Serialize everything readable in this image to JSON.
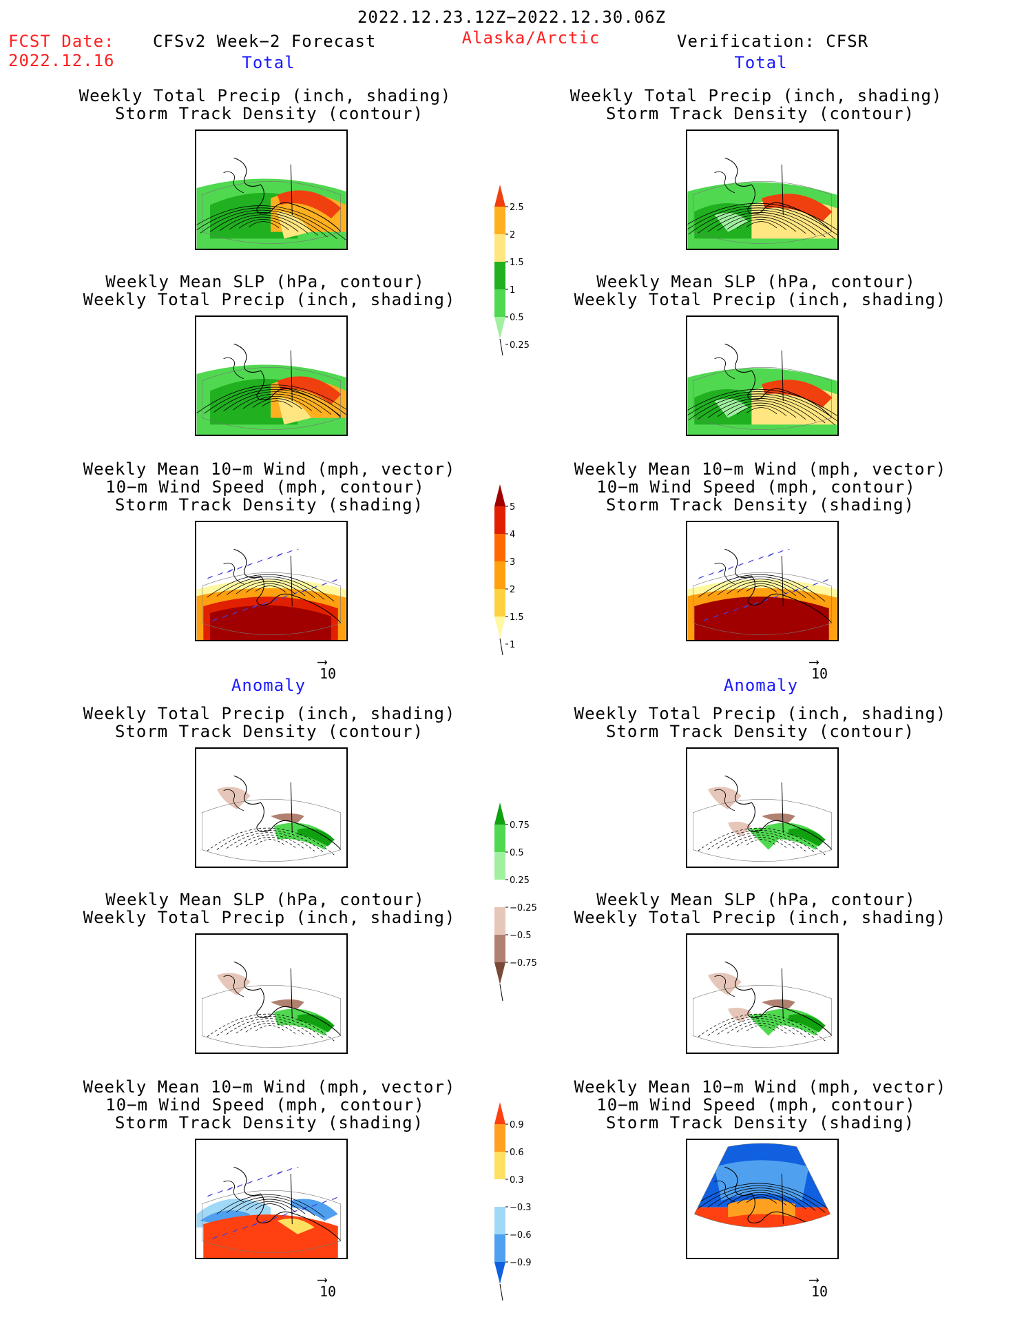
{
  "header": {
    "period": "2022.12.23.12Z−2022.12.30.06Z",
    "fcst_label": "FCST Date:",
    "fcst_date": "2022.12.16",
    "product": "CFSv2 Week−2 Forecast",
    "region": "Alaska/Arctic",
    "verification": "Verification: CFSR"
  },
  "sections": {
    "total": "Total",
    "anomaly": "Anomaly"
  },
  "panel_titles": {
    "precip_storm": [
      "Weekly Total Precip (inch, shading)",
      "Storm Track Density (contour)"
    ],
    "slp_precip": [
      "Weekly Mean SLP (hPa, contour)",
      "Weekly Total Precip (inch, shading)"
    ],
    "wind_storm": [
      "Weekly Mean 10−m Wind (mph, vector)",
      "10−m Wind Speed (mph, contour)",
      "Storm Track Density (shading)"
    ]
  },
  "vector_ref": "10",
  "colors": {
    "text_red": "#ff2020",
    "text_blue": "#1a1aff"
  },
  "chart_data": [
    {
      "type": "heatmap",
      "name": "precip_total",
      "levels": [
        0.25,
        0.5,
        1,
        1.5,
        2,
        2.5
      ],
      "tick_labels": [
        "0.25",
        "0.5",
        "1",
        "1.5",
        "2",
        "2.5"
      ],
      "colors": [
        "#a0f0a0",
        "#50d850",
        "#20b020",
        "#ffe680",
        "#ffb020",
        "#f04010"
      ]
    },
    {
      "type": "heatmap",
      "name": "storm_density_total",
      "levels": [
        1,
        1.5,
        2,
        3,
        4,
        5
      ],
      "tick_labels": [
        "1",
        "1.5",
        "2",
        "3",
        "4",
        "5"
      ],
      "colors": [
        "#fff8a0",
        "#ffd040",
        "#ffa010",
        "#ff6a00",
        "#e02000",
        "#a00000"
      ]
    },
    {
      "type": "heatmap",
      "name": "precip_anomaly",
      "levels": [
        -0.75,
        -0.5,
        -0.25,
        0.25,
        0.5,
        0.75
      ],
      "tick_labels": [
        "0.75",
        "0.5",
        "0.25",
        "−0.25",
        "−0.5",
        "−0.75"
      ],
      "colors": [
        "#7a4a38",
        "#b08070",
        "#e6c6b8",
        "#ffffff",
        "#a0f0a0",
        "#50d850",
        "#10a010"
      ]
    },
    {
      "type": "heatmap",
      "name": "storm_density_anomaly",
      "levels": [
        -0.9,
        -0.6,
        -0.3,
        0.3,
        0.6,
        0.9
      ],
      "tick_labels": [
        "0.9",
        "0.6",
        "0.3",
        "−0.3",
        "−0.6",
        "−0.9"
      ],
      "colors": [
        "#1060e0",
        "#50a0f0",
        "#a0d8f8",
        "#ffffff",
        "#ffe060",
        "#ffa020",
        "#ff4010"
      ]
    }
  ]
}
